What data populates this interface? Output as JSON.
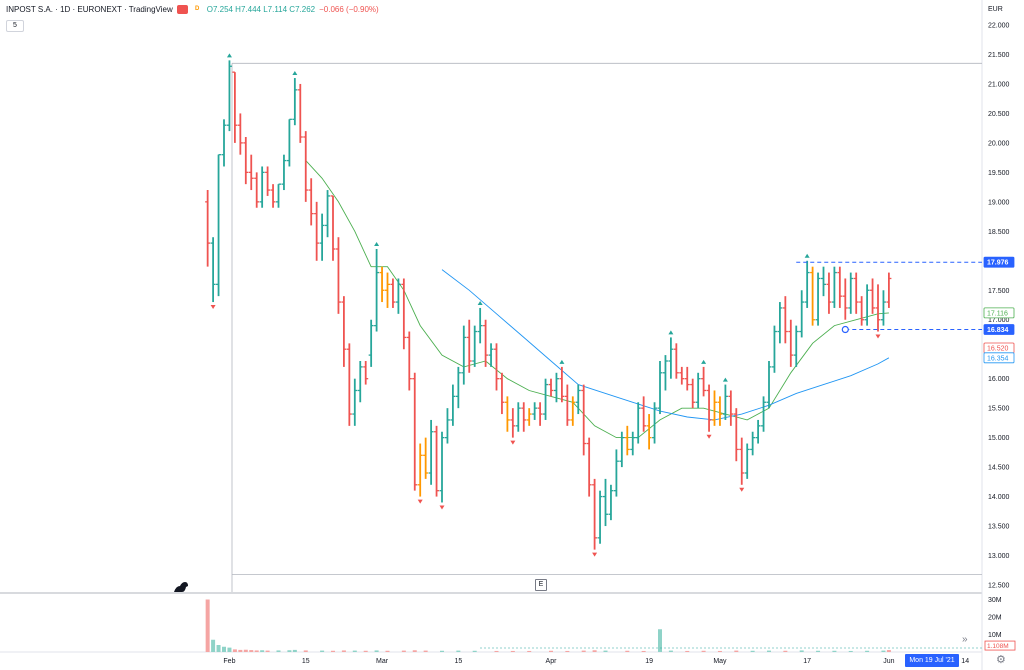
{
  "header": {
    "symbol": "INPOST S.A. · 1D · EURONEXT · TradingView",
    "badge_red": "",
    "badge_d": "D",
    "ohlc": "O7.254 H7.444 L7.114 C7.262",
    "change": "−0.066 (−0.90%)",
    "indicator_toggle": "5"
  },
  "colors": {
    "up": "#26a69a",
    "down": "#ef5350",
    "neutral": "#ff9800",
    "ma_fast": "#4caf50",
    "ma_slow": "#2196f3",
    "price_tag": "#2962ff"
  },
  "chart_data": {
    "type": "ohlc",
    "currency_label": "EUR",
    "y_ticks": [
      "22.000",
      "21.500",
      "21.000",
      "20.500",
      "20.000",
      "19.500",
      "19.000",
      "18.500",
      "18.000",
      "17.500",
      "17.000",
      "16.500",
      "16.000",
      "15.500",
      "15.000",
      "14.500",
      "14.000",
      "13.500",
      "13.000",
      "12.500"
    ],
    "ylim": [
      12.4,
      22.2
    ],
    "x_labels": [
      "Feb",
      "15",
      "Mar",
      "15",
      "Apr",
      "19",
      "May",
      "17",
      "Jun",
      "14",
      "Jul"
    ],
    "x_label_days": [
      1,
      15,
      29,
      43,
      60,
      78,
      91,
      107,
      122,
      136,
      152
    ],
    "price_tags": [
      {
        "label": "17.976",
        "value": 17.976,
        "color": "#2962ff"
      },
      {
        "label": "17.116",
        "value": 17.116,
        "color": "#4caf50"
      },
      {
        "label": "16.834",
        "value": 16.834,
        "color": "#2962ff"
      },
      {
        "label": "16.520",
        "value": 16.52,
        "color": "#ef5350"
      },
      {
        "label": "16.354",
        "value": 16.354,
        "color": "#2196f3"
      }
    ],
    "volume_ticks": [
      "30M",
      "20M",
      "10M"
    ],
    "volume_last_label": "1.108M",
    "volume_max": 32,
    "ath_line": 21.35,
    "atl_line": 12.68,
    "crosshair_date": "Mon 19 Jul '21",
    "bars": [
      [
        -3,
        19.0,
        19.2,
        17.9,
        18.3,
        0
      ],
      [
        -2,
        18.3,
        18.4,
        17.3,
        17.6,
        1
      ],
      [
        -1,
        17.6,
        19.8,
        17.4,
        19.8,
        1
      ],
      [
        0,
        19.8,
        20.4,
        19.6,
        20.3,
        1
      ],
      [
        1,
        20.3,
        21.4,
        20.2,
        21.3,
        1
      ],
      [
        2,
        21.2,
        21.2,
        20.0,
        20.3,
        0
      ],
      [
        3,
        20.3,
        20.5,
        19.8,
        20.0,
        0
      ],
      [
        4,
        20.0,
        20.1,
        19.3,
        19.5,
        0
      ],
      [
        5,
        19.5,
        19.8,
        19.2,
        19.4,
        0
      ],
      [
        6,
        19.4,
        19.5,
        18.9,
        19.0,
        0
      ],
      [
        7,
        19.0,
        19.6,
        18.9,
        19.5,
        1
      ],
      [
        8,
        19.5,
        19.6,
        19.1,
        19.2,
        0
      ],
      [
        9,
        19.2,
        19.3,
        18.9,
        19.0,
        0
      ],
      [
        10,
        19.0,
        19.3,
        18.9,
        19.3,
        1
      ],
      [
        11,
        19.3,
        19.8,
        19.2,
        19.7,
        1
      ],
      [
        12,
        19.7,
        20.4,
        19.6,
        20.4,
        1
      ],
      [
        13,
        20.4,
        21.1,
        20.3,
        20.9,
        1
      ],
      [
        14,
        20.9,
        21.0,
        20.0,
        20.1,
        0
      ],
      [
        15,
        20.1,
        20.2,
        19.0,
        19.2,
        0
      ],
      [
        16,
        19.2,
        19.4,
        18.6,
        18.8,
        0
      ],
      [
        17,
        18.8,
        19.0,
        18.0,
        18.3,
        0
      ],
      [
        18,
        18.3,
        18.8,
        18.0,
        18.6,
        1
      ],
      [
        19,
        18.6,
        19.2,
        18.4,
        19.1,
        1
      ],
      [
        20,
        19.1,
        19.1,
        18.0,
        18.2,
        0
      ],
      [
        21,
        18.2,
        18.4,
        17.1,
        17.3,
        0
      ],
      [
        22,
        17.3,
        17.4,
        16.2,
        16.5,
        0
      ],
      [
        23,
        16.5,
        16.6,
        15.2,
        15.4,
        0
      ],
      [
        24,
        15.4,
        16.0,
        15.2,
        15.8,
        1
      ],
      [
        25,
        15.8,
        16.3,
        15.6,
        16.2,
        1
      ],
      [
        26,
        16.2,
        16.3,
        15.9,
        16.0,
        0
      ],
      [
        27,
        16.4,
        17.0,
        16.2,
        16.9,
        1
      ],
      [
        28,
        16.9,
        18.2,
        16.8,
        17.8,
        1
      ],
      [
        29,
        17.8,
        17.9,
        17.3,
        17.5,
        2
      ],
      [
        30,
        17.5,
        17.8,
        17.2,
        17.6,
        2
      ],
      [
        31,
        17.6,
        17.7,
        17.2,
        17.3,
        0
      ],
      [
        32,
        17.3,
        17.7,
        17.1,
        17.6,
        1
      ],
      [
        33,
        17.6,
        17.7,
        16.5,
        16.7,
        0
      ],
      [
        34,
        16.7,
        16.8,
        15.8,
        16.0,
        0
      ],
      [
        35,
        16.0,
        16.1,
        14.1,
        14.2,
        0
      ],
      [
        36,
        14.2,
        14.9,
        14.0,
        14.7,
        2
      ],
      [
        37,
        14.7,
        15.0,
        14.3,
        14.4,
        2
      ],
      [
        38,
        14.4,
        15.3,
        14.2,
        15.1,
        1
      ],
      [
        39,
        15.1,
        15.2,
        14.0,
        14.1,
        0
      ],
      [
        40,
        14.1,
        15.1,
        13.9,
        15.0,
        1
      ],
      [
        41,
        15.0,
        15.5,
        14.9,
        15.3,
        1
      ],
      [
        42,
        15.3,
        15.9,
        15.2,
        15.7,
        1
      ],
      [
        43,
        15.7,
        16.2,
        15.5,
        16.1,
        1
      ],
      [
        44,
        16.1,
        16.9,
        15.9,
        16.7,
        1
      ],
      [
        45,
        16.7,
        17.0,
        16.1,
        16.3,
        0
      ],
      [
        46,
        16.3,
        16.9,
        16.2,
        16.8,
        1
      ],
      [
        47,
        16.8,
        17.2,
        16.6,
        16.9,
        1
      ],
      [
        48,
        16.9,
        17.0,
        16.2,
        16.4,
        0
      ],
      [
        49,
        16.4,
        16.6,
        16.2,
        16.5,
        1
      ],
      [
        50,
        16.5,
        16.6,
        15.8,
        16.0,
        0
      ],
      [
        51,
        16.0,
        16.1,
        15.4,
        15.6,
        0
      ],
      [
        52,
        15.6,
        15.7,
        15.1,
        15.3,
        2
      ],
      [
        53,
        15.3,
        15.5,
        15.0,
        15.2,
        0
      ],
      [
        54,
        15.2,
        15.6,
        15.1,
        15.5,
        1
      ],
      [
        55,
        15.5,
        15.6,
        15.1,
        15.3,
        0
      ],
      [
        56,
        15.3,
        15.5,
        15.2,
        15.4,
        2
      ],
      [
        57,
        15.4,
        15.6,
        15.3,
        15.5,
        1
      ],
      [
        58,
        15.5,
        15.6,
        15.2,
        15.4,
        0
      ],
      [
        59,
        15.4,
        16.0,
        15.3,
        15.9,
        1
      ],
      [
        60,
        15.9,
        16.0,
        15.7,
        15.8,
        0
      ],
      [
        61,
        15.8,
        16.1,
        15.6,
        16.0,
        1
      ],
      [
        62,
        16.0,
        16.2,
        15.6,
        15.7,
        0
      ],
      [
        63,
        15.7,
        15.9,
        15.2,
        15.3,
        0
      ],
      [
        64,
        15.3,
        15.7,
        15.2,
        15.6,
        2
      ],
      [
        65,
        15.6,
        15.9,
        15.4,
        15.8,
        1
      ],
      [
        66,
        15.8,
        15.9,
        14.7,
        14.9,
        0
      ],
      [
        67,
        14.9,
        15.0,
        14.0,
        14.2,
        0
      ],
      [
        68,
        14.2,
        14.3,
        13.1,
        13.3,
        0
      ],
      [
        69,
        13.3,
        14.1,
        13.2,
        14.0,
        1
      ],
      [
        70,
        14.0,
        14.3,
        13.5,
        13.7,
        1
      ],
      [
        71,
        13.7,
        14.2,
        13.6,
        14.1,
        1
      ],
      [
        72,
        14.1,
        14.8,
        14.0,
        14.6,
        1
      ],
      [
        73,
        14.6,
        15.1,
        14.5,
        15.0,
        1
      ],
      [
        74,
        15.0,
        15.2,
        14.7,
        14.8,
        2
      ],
      [
        75,
        14.8,
        15.1,
        14.7,
        15.0,
        1
      ],
      [
        76,
        15.0,
        15.6,
        14.9,
        15.5,
        1
      ],
      [
        77,
        15.5,
        15.7,
        15.1,
        15.2,
        0
      ],
      [
        78,
        15.2,
        15.4,
        14.8,
        15.0,
        2
      ],
      [
        79,
        15.0,
        15.6,
        14.9,
        15.5,
        1
      ],
      [
        80,
        15.5,
        16.3,
        15.4,
        16.1,
        1
      ],
      [
        81,
        16.1,
        16.4,
        15.8,
        16.3,
        1
      ],
      [
        82,
        16.3,
        16.7,
        16.0,
        16.5,
        1
      ],
      [
        83,
        16.5,
        16.6,
        16.0,
        16.1,
        0
      ],
      [
        84,
        16.1,
        16.2,
        15.9,
        16.0,
        0
      ],
      [
        85,
        16.0,
        16.2,
        15.8,
        15.9,
        0
      ],
      [
        86,
        15.9,
        16.0,
        15.5,
        15.6,
        0
      ],
      [
        87,
        15.6,
        16.1,
        15.5,
        16.0,
        1
      ],
      [
        88,
        16.0,
        16.2,
        15.7,
        15.8,
        0
      ],
      [
        89,
        15.8,
        15.9,
        15.1,
        15.3,
        0
      ],
      [
        90,
        15.3,
        15.8,
        15.2,
        15.6,
        2
      ],
      [
        91,
        15.6,
        15.7,
        15.2,
        15.4,
        2
      ],
      [
        92,
        15.4,
        15.9,
        15.3,
        15.7,
        1
      ],
      [
        93,
        15.7,
        15.8,
        15.2,
        15.4,
        0
      ],
      [
        94,
        15.4,
        15.5,
        14.6,
        14.8,
        0
      ],
      [
        95,
        14.8,
        15.0,
        14.2,
        14.4,
        0
      ],
      [
        96,
        14.4,
        14.9,
        14.3,
        14.8,
        1
      ],
      [
        97,
        14.8,
        15.1,
        14.7,
        15.0,
        1
      ],
      [
        98,
        15.0,
        15.3,
        14.9,
        15.2,
        1
      ],
      [
        99,
        15.2,
        15.7,
        15.1,
        15.6,
        1
      ],
      [
        100,
        15.6,
        16.3,
        15.5,
        16.2,
        1
      ],
      [
        101,
        16.2,
        16.9,
        16.1,
        16.8,
        1
      ],
      [
        102,
        16.8,
        17.3,
        16.6,
        17.2,
        1
      ],
      [
        103,
        17.2,
        17.4,
        16.6,
        16.8,
        0
      ],
      [
        104,
        16.8,
        17.0,
        16.2,
        16.4,
        0
      ],
      [
        105,
        16.4,
        16.9,
        16.2,
        16.8,
        1
      ],
      [
        106,
        16.8,
        17.5,
        16.7,
        17.3,
        1
      ],
      [
        107,
        17.3,
        18.0,
        17.2,
        17.8,
        1
      ],
      [
        108,
        17.8,
        17.9,
        16.9,
        17.0,
        2
      ],
      [
        109,
        17.0,
        17.8,
        16.9,
        17.7,
        1
      ],
      [
        110,
        17.7,
        17.9,
        17.4,
        17.6,
        1
      ],
      [
        111,
        17.6,
        17.8,
        17.1,
        17.3,
        0
      ],
      [
        112,
        17.3,
        17.9,
        17.2,
        17.8,
        1
      ],
      [
        113,
        17.8,
        17.9,
        17.2,
        17.4,
        0
      ],
      [
        114,
        17.4,
        17.7,
        17.0,
        17.2,
        0
      ],
      [
        115,
        17.2,
        17.8,
        17.1,
        17.7,
        1
      ],
      [
        116,
        17.7,
        17.8,
        17.1,
        17.3,
        0
      ],
      [
        117,
        17.3,
        17.4,
        16.9,
        17.0,
        0
      ],
      [
        118,
        17.0,
        17.6,
        16.9,
        17.5,
        1
      ],
      [
        119,
        17.5,
        17.7,
        17.1,
        17.2,
        0
      ],
      [
        120,
        17.2,
        17.6,
        16.8,
        17.0,
        0
      ],
      [
        121,
        17.0,
        17.5,
        16.9,
        17.3,
        1
      ],
      [
        122,
        17.3,
        17.8,
        17.2,
        17.7,
        0
      ]
    ],
    "ma_fast": [
      [
        15,
        19.7
      ],
      [
        18,
        19.4
      ],
      [
        21,
        19.0
      ],
      [
        24,
        18.5
      ],
      [
        27,
        17.9
      ],
      [
        30,
        17.9
      ],
      [
        33,
        17.5
      ],
      [
        36,
        16.9
      ],
      [
        40,
        16.4
      ],
      [
        44,
        16.2
      ],
      [
        48,
        16.3
      ],
      [
        52,
        16.0
      ],
      [
        56,
        15.8
      ],
      [
        60,
        15.7
      ],
      [
        64,
        15.6
      ],
      [
        68,
        15.2
      ],
      [
        72,
        15.0
      ],
      [
        76,
        15.0
      ],
      [
        80,
        15.3
      ],
      [
        84,
        15.5
      ],
      [
        88,
        15.5
      ],
      [
        92,
        15.4
      ],
      [
        96,
        15.3
      ],
      [
        100,
        15.5
      ],
      [
        104,
        16.1
      ],
      [
        108,
        16.6
      ],
      [
        112,
        16.9
      ],
      [
        116,
        17.0
      ],
      [
        120,
        17.1
      ],
      [
        122,
        17.116
      ]
    ],
    "ma_slow": [
      [
        40,
        17.85
      ],
      [
        45,
        17.5
      ],
      [
        50,
        17.1
      ],
      [
        55,
        16.7
      ],
      [
        60,
        16.3
      ],
      [
        65,
        15.9
      ],
      [
        70,
        15.75
      ],
      [
        75,
        15.6
      ],
      [
        80,
        15.45
      ],
      [
        85,
        15.35
      ],
      [
        90,
        15.3
      ],
      [
        95,
        15.4
      ],
      [
        100,
        15.55
      ],
      [
        105,
        15.75
      ],
      [
        110,
        15.9
      ],
      [
        115,
        16.05
      ],
      [
        120,
        16.25
      ],
      [
        122,
        16.354
      ]
    ],
    "volume": [
      [
        -3,
        30
      ],
      [
        -2,
        7
      ],
      [
        -1,
        4
      ],
      [
        0,
        3
      ],
      [
        1,
        2.5
      ],
      [
        2,
        1.5
      ],
      [
        3,
        1.2
      ],
      [
        4,
        1.3
      ],
      [
        5,
        1.1
      ],
      [
        6,
        0.9
      ],
      [
        7,
        1.0
      ],
      [
        8,
        0.8
      ],
      [
        10,
        0.9
      ],
      [
        12,
        1.0
      ],
      [
        13,
        1.2
      ],
      [
        15,
        0.9
      ],
      [
        18,
        0.8
      ],
      [
        20,
        0.7
      ],
      [
        22,
        0.9
      ],
      [
        24,
        0.8
      ],
      [
        26,
        0.7
      ],
      [
        28,
        0.9
      ],
      [
        30,
        0.7
      ],
      [
        33,
        0.8
      ],
      [
        35,
        1.0
      ],
      [
        37,
        0.8
      ],
      [
        40,
        0.7
      ],
      [
        43,
        0.8
      ],
      [
        46,
        0.7
      ],
      [
        50,
        0.6
      ],
      [
        53,
        0.6
      ],
      [
        56,
        0.6
      ],
      [
        60,
        0.7
      ],
      [
        63,
        0.6
      ],
      [
        66,
        0.8
      ],
      [
        68,
        1.0
      ],
      [
        70,
        0.8
      ],
      [
        74,
        0.7
      ],
      [
        77,
        0.6
      ],
      [
        80,
        13
      ],
      [
        82,
        0.8
      ],
      [
        85,
        0.6
      ],
      [
        88,
        0.7
      ],
      [
        91,
        0.6
      ],
      [
        94,
        0.8
      ],
      [
        97,
        0.7
      ],
      [
        100,
        0.8
      ],
      [
        103,
        0.7
      ],
      [
        106,
        0.9
      ],
      [
        109,
        0.7
      ],
      [
        112,
        0.7
      ],
      [
        115,
        0.6
      ],
      [
        118,
        0.7
      ],
      [
        121,
        0.8
      ],
      [
        122,
        1.108
      ]
    ]
  }
}
